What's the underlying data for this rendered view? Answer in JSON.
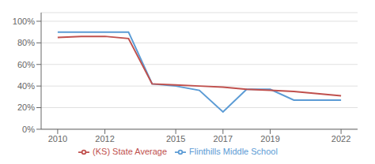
{
  "chart_data": {
    "type": "line",
    "x": [
      2010,
      2011,
      2012,
      2013,
      2014,
      2015,
      2016,
      2017,
      2018,
      2019,
      2020,
      2021,
      2022
    ],
    "series": [
      {
        "name": "Flinthills Middle School",
        "color": "#5b9bd5",
        "values": [
          90,
          90,
          90,
          90,
          42,
          40,
          36,
          16,
          37,
          37,
          27,
          27,
          27
        ]
      },
      {
        "name": "(KS) State Average",
        "color": "#c0504d",
        "values": [
          85,
          86,
          86,
          84,
          42,
          41,
          40,
          39,
          37,
          36,
          35,
          33,
          31
        ]
      }
    ],
    "xlim": [
      2009.3,
      2022.7
    ],
    "xticks": [
      2010,
      2012,
      2015,
      2017,
      2019,
      2022
    ],
    "ylim": [
      0,
      108
    ],
    "yticks": [
      {
        "value": 0,
        "label": "0%"
      },
      {
        "value": 20,
        "label": "20%"
      },
      {
        "value": 40,
        "label": "40%"
      },
      {
        "value": 60,
        "label": "60%"
      },
      {
        "value": 80,
        "label": "80%"
      },
      {
        "value": 100,
        "label": "100%"
      }
    ],
    "grid": "y",
    "legend": "bottom"
  }
}
